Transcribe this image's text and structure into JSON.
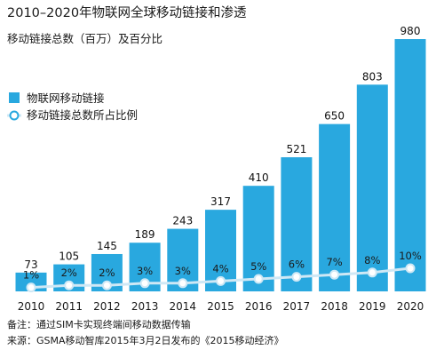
{
  "chart_data": {
    "type": "bar",
    "title": "2010–2020年物联网全球移动链接和渗透",
    "subtitle": "移动链接总数（百万）及百分比",
    "categories": [
      "2010",
      "2011",
      "2012",
      "2013",
      "2014",
      "2015",
      "2016",
      "2017",
      "2018",
      "2019",
      "2020"
    ],
    "series": [
      {
        "name": "物联网移动链接",
        "type": "bar",
        "values": [
          73,
          105,
          145,
          189,
          243,
          317,
          410,
          521,
          650,
          803,
          980
        ],
        "color": "#29a8df"
      },
      {
        "name": "移动链接总数所占比例",
        "type": "line",
        "values": [
          1,
          2,
          2,
          3,
          3,
          4,
          5,
          6,
          7,
          8,
          10
        ],
        "labels": [
          "1%",
          "2%",
          "2%",
          "3%",
          "3%",
          "4%",
          "5%",
          "6%",
          "7%",
          "8%",
          "10%"
        ],
        "color": "#ffffff",
        "line_color": "#cfe8f5"
      }
    ],
    "ylim": [
      0,
      980
    ],
    "grid": false,
    "legend_position": "top-left",
    "notes": [
      "备注：通过SIM卡实现终端间移动数据传输",
      "来源：GSMA移动智库2015年3月2日发布的《2015移动经济》"
    ],
    "colors": {
      "bar": "#29a8df",
      "background": "#ffffff",
      "text": "#1a1a1a"
    }
  }
}
